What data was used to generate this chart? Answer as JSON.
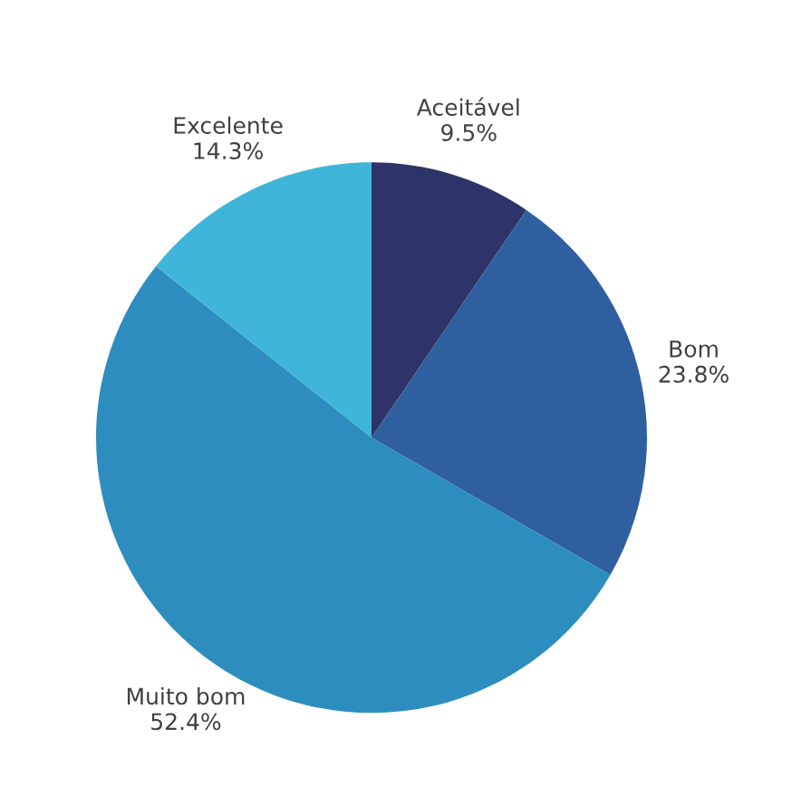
{
  "chart_data": {
    "type": "pie",
    "categories": [
      "Aceitável",
      "Bom",
      "Muito bom",
      "Excelente"
    ],
    "values": [
      9.5,
      23.8,
      52.4,
      14.3
    ],
    "value_labels": [
      "9.5%",
      "23.8%",
      "52.4%",
      "14.3%"
    ],
    "colors": [
      "#2e3468",
      "#2f5f9e",
      "#2d8dbf",
      "#3fb6d9"
    ],
    "legend": false
  }
}
